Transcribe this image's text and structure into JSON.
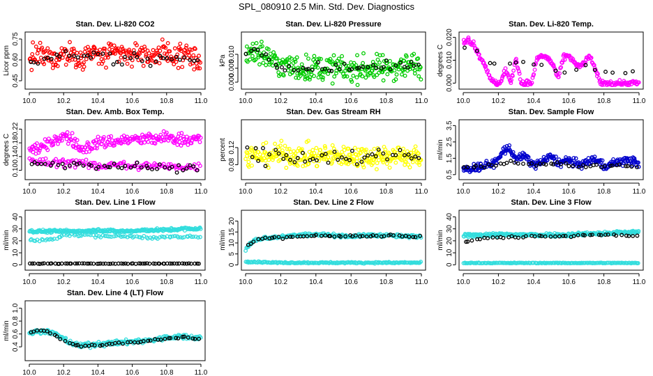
{
  "main_title": "SPL_080910  2.5 Min. Std. Dev. Diagnostics",
  "chart_data": [
    {
      "type": "scatter",
      "title": "Stan. Dev. Li-820 CO2",
      "ylabel": "Licor ppm",
      "xlim": [
        10.0,
        11.0
      ],
      "ylim": [
        0.42,
        0.77
      ],
      "xticks": [
        "10.0",
        "10.2",
        "10.4",
        "10.6",
        "10.8",
        "11.0"
      ],
      "yticks": [
        "0.45",
        "0.60",
        "0.75"
      ],
      "color": "#ff0000",
      "series": [
        {
          "x": [
            10.0,
            10.05,
            10.1,
            10.15,
            10.2,
            10.25,
            10.3,
            10.35,
            10.4,
            10.45,
            10.5,
            10.55,
            10.6,
            10.65,
            10.7,
            10.75,
            10.8,
            10.85,
            10.9,
            10.95,
            11.0
          ],
          "y": [
            0.6,
            0.64,
            0.62,
            0.6,
            0.65,
            0.63,
            0.61,
            0.65,
            0.63,
            0.62,
            0.65,
            0.64,
            0.63,
            0.66,
            0.62,
            0.65,
            0.64,
            0.63,
            0.65,
            0.62,
            0.58
          ],
          "spread": 0.08,
          "n": 260,
          "hue": "color"
        },
        {
          "x": [
            10.0,
            10.1,
            10.2,
            10.3,
            10.4,
            10.5,
            10.6,
            10.7,
            10.8,
            10.9,
            11.0
          ],
          "y": [
            0.57,
            0.6,
            0.62,
            0.6,
            0.63,
            0.6,
            0.62,
            0.6,
            0.61,
            0.6,
            0.57
          ],
          "spread": 0.05,
          "n": 40,
          "hue": "black"
        }
      ]
    },
    {
      "type": "scatter",
      "title": "Stan. Dev. Li-820 Pressure",
      "ylabel": "kPa",
      "xlim": [
        10.0,
        11.0
      ],
      "ylim": [
        -0.001,
        0.0165
      ],
      "xticks": [
        "10.0",
        "10.2",
        "10.4",
        "10.6",
        "10.8",
        "11.0"
      ],
      "yticks": [
        "0.000",
        "0.005",
        "0.010"
      ],
      "color": "#00cc00",
      "series": [
        {
          "x": [
            10.0,
            10.05,
            10.1,
            10.15,
            10.2,
            10.3,
            10.4,
            10.5,
            10.6,
            10.7,
            10.8,
            10.9,
            11.0
          ],
          "y": [
            0.011,
            0.0115,
            0.01,
            0.008,
            0.006,
            0.005,
            0.005,
            0.005,
            0.0045,
            0.005,
            0.005,
            0.006,
            0.006
          ],
          "spread": 0.0045,
          "n": 300,
          "hue": "color"
        },
        {
          "x": [
            10.0,
            10.05,
            10.1,
            10.15,
            10.2,
            10.3,
            10.4,
            10.5,
            10.6,
            10.7,
            10.8,
            10.9,
            11.0
          ],
          "y": [
            0.0105,
            0.011,
            0.0105,
            0.008,
            0.006,
            0.005,
            0.0055,
            0.005,
            0.005,
            0.0055,
            0.0055,
            0.006,
            0.006
          ],
          "spread": 0.0015,
          "n": 45,
          "hue": "black"
        }
      ]
    },
    {
      "type": "scatter",
      "title": "Stan. Dev. Li-820 Temp.",
      "ylabel": "degrees C",
      "xlim": [
        10.0,
        11.0
      ],
      "ylim": [
        -0.0008,
        0.0205
      ],
      "xticks": [
        "10.0",
        "10.2",
        "10.4",
        "10.6",
        "10.8",
        "11.0"
      ],
      "yticks": [
        "0.000",
        "0.010",
        "0.020"
      ],
      "color": "#ff00ff",
      "series": [
        {
          "x": [
            10.0,
            10.03,
            10.06,
            10.09,
            10.12,
            10.15,
            10.18,
            10.21,
            10.24,
            10.27,
            10.3,
            10.33,
            10.36,
            10.39,
            10.42,
            10.45,
            10.48,
            10.51,
            10.54,
            10.57,
            10.6,
            10.63,
            10.66,
            10.69,
            10.72,
            10.75,
            10.78,
            10.81,
            10.85,
            10.9,
            10.95,
            11.0
          ],
          "y": [
            0.018,
            0.019,
            0.017,
            0.012,
            0.009,
            0.002,
            0.0,
            0.0,
            0.006,
            0.0,
            0.011,
            0.0,
            0.0,
            0.0,
            0.011,
            0.012,
            0.011,
            0.008,
            0.002,
            0.011,
            0.012,
            0.009,
            0.007,
            0.009,
            0.012,
            0.006,
            0.0,
            0.0,
            0.0,
            0.0,
            0.0,
            0.0
          ],
          "spread": 0.0012,
          "n": 260,
          "hue": "color"
        },
        {
          "x": [
            10.05,
            10.1,
            10.15,
            10.45,
            10.5,
            10.55,
            10.65,
            10.7,
            10.75
          ],
          "y": [
            0.015,
            0.013,
            0.009,
            0.008,
            0.006,
            0.004,
            0.007,
            0.008,
            0.005
          ],
          "spread": 0.001,
          "n": 18,
          "hue": "black"
        }
      ]
    },
    {
      "type": "scatter",
      "title": "Stan. Dev. Amb. Box Temp.",
      "ylabel": "degrees C",
      "xlim": [
        10.0,
        11.0
      ],
      "ylim": [
        0.085,
        0.235
      ],
      "xticks": [
        "10.0",
        "10.2",
        "10.4",
        "10.6",
        "10.8",
        "11.0"
      ],
      "yticks": [
        "0.10",
        "0.14",
        "0.18",
        "0.22"
      ],
      "color": "#ff00ff",
      "series": [
        {
          "x": [
            10.0,
            10.1,
            10.15,
            10.2,
            10.25,
            10.3,
            10.35,
            10.4,
            10.5,
            10.6,
            10.7,
            10.8,
            10.9,
            11.0
          ],
          "y": [
            0.16,
            0.17,
            0.19,
            0.2,
            0.19,
            0.16,
            0.17,
            0.18,
            0.185,
            0.19,
            0.19,
            0.195,
            0.19,
            0.19
          ],
          "spread": 0.018,
          "n": 230,
          "hue": "color"
        },
        {
          "x": [
            10.0,
            10.1,
            10.2,
            10.3,
            10.4,
            10.5,
            10.6,
            10.7,
            10.8,
            10.9,
            11.0
          ],
          "y": [
            0.13,
            0.12,
            0.125,
            0.12,
            0.11,
            0.12,
            0.11,
            0.115,
            0.11,
            0.11,
            0.11
          ],
          "spread": 0.012,
          "n": 140,
          "hue": "color"
        },
        {
          "x": [
            10.0,
            10.1,
            10.2,
            10.3,
            10.4,
            10.5,
            10.6,
            10.7,
            10.8,
            10.9,
            11.0
          ],
          "y": [
            0.125,
            0.12,
            0.12,
            0.12,
            0.11,
            0.115,
            0.11,
            0.11,
            0.105,
            0.11,
            0.11
          ],
          "spread": 0.012,
          "n": 45,
          "hue": "black"
        }
      ]
    },
    {
      "type": "scatter",
      "title": "Stan. Dev. Gas Stream RH",
      "ylabel": "percent",
      "xlim": [
        10.0,
        11.0
      ],
      "ylim": [
        0.055,
        0.175
      ],
      "xticks": [
        "10.0",
        "10.2",
        "10.4",
        "10.6",
        "10.8",
        "11.0"
      ],
      "yticks": [
        "0.08",
        "0.12"
      ],
      "color": "#ffff00",
      "series": [
        {
          "x": [
            10.0,
            10.1,
            10.2,
            10.3,
            10.4,
            10.5,
            10.6,
            10.7,
            10.8,
            10.9,
            11.0
          ],
          "y": [
            0.1,
            0.1,
            0.105,
            0.1,
            0.1,
            0.1,
            0.1,
            0.1,
            0.1,
            0.1,
            0.095
          ],
          "spread": 0.025,
          "n": 320,
          "hue": "color"
        },
        {
          "x": [
            10.0,
            10.1,
            10.2,
            10.3,
            10.4,
            10.5,
            10.6,
            10.7,
            10.8,
            10.9,
            11.0
          ],
          "y": [
            0.1,
            0.1,
            0.105,
            0.1,
            0.1,
            0.1,
            0.1,
            0.1,
            0.1,
            0.1,
            0.095
          ],
          "spread": 0.02,
          "n": 45,
          "hue": "black"
        }
      ]
    },
    {
      "type": "scatter",
      "title": "Stan. Dev. Sample Flow",
      "ylabel": "ml/min",
      "xlim": [
        10.0,
        11.0
      ],
      "ylim": [
        0.45,
        3.6
      ],
      "xticks": [
        "10.0",
        "10.2",
        "10.4",
        "10.6",
        "10.8",
        "11.0"
      ],
      "yticks": [
        "0.5",
        "1.5",
        "2.5",
        "3.5"
      ],
      "color": "#0000cc",
      "series": [
        {
          "x": [
            10.0,
            10.05,
            10.1,
            10.15,
            10.2,
            10.23,
            10.26,
            10.3,
            10.35,
            10.4,
            10.45,
            10.5,
            10.55,
            10.6,
            10.65,
            10.7,
            10.75,
            10.8,
            10.85,
            10.9,
            10.95,
            11.0
          ],
          "y": [
            0.8,
            0.9,
            1.0,
            1.1,
            1.4,
            2.0,
            2.1,
            1.5,
            1.6,
            1.1,
            1.3,
            1.6,
            1.2,
            1.4,
            1.1,
            1.2,
            1.5,
            1.0,
            1.2,
            1.3,
            1.4,
            1.1
          ],
          "spread": 0.25,
          "n": 300,
          "hue": "color"
        },
        {
          "x": [
            10.0,
            10.1,
            10.2,
            10.3,
            10.4,
            10.5,
            10.6,
            10.7,
            10.8,
            10.9,
            11.0
          ],
          "y": [
            0.9,
            1.0,
            1.1,
            1.3,
            1.1,
            1.2,
            1.1,
            1.0,
            1.0,
            1.1,
            1.0
          ],
          "spread": 0.12,
          "n": 45,
          "hue": "black"
        }
      ]
    },
    {
      "type": "scatter",
      "title": "Stan. Dev. Line 1 Flow",
      "ylabel": "ml/min",
      "xlim": [
        10.0,
        11.0
      ],
      "ylim": [
        -1,
        42
      ],
      "xticks": [
        "10.0",
        "10.2",
        "10.4",
        "10.6",
        "10.8",
        "11.0"
      ],
      "yticks": [
        "0",
        "10",
        "20",
        "30",
        "40"
      ],
      "color": "#33dddd",
      "series": [
        {
          "x": [
            10.0,
            10.1,
            10.2,
            10.3,
            10.4,
            10.5,
            10.6,
            10.7,
            10.8,
            10.9,
            11.0
          ],
          "y": [
            28,
            28,
            28,
            28,
            29,
            28,
            28,
            29,
            29,
            30,
            30
          ],
          "spread": 1.2,
          "n": 260,
          "hue": "color"
        },
        {
          "x": [
            10.0,
            10.05,
            10.1,
            10.15,
            10.2,
            10.7,
            10.8,
            10.9,
            11.0
          ],
          "y": [
            21,
            20,
            21,
            22,
            25,
            23,
            23,
            23,
            23
          ],
          "spread": 1.2,
          "n": 90,
          "hue": "color"
        },
        {
          "x": [
            10.0,
            10.2,
            10.4,
            10.6,
            10.8,
            11.0
          ],
          "y": [
            1,
            1,
            1,
            1,
            1,
            1
          ],
          "spread": 0.2,
          "n": 70,
          "hue": "black"
        }
      ]
    },
    {
      "type": "scatter",
      "title": "Stan. Dev. Line 2 Flow",
      "ylabel": "ml/min",
      "xlim": [
        10.0,
        11.0
      ],
      "ylim": [
        -0.5,
        23
      ],
      "xticks": [
        "10.0",
        "10.2",
        "10.4",
        "10.6",
        "10.8",
        "11.0"
      ],
      "yticks": [
        "0",
        "5",
        "10",
        "15",
        "20"
      ],
      "color": "#33dddd",
      "series": [
        {
          "x": [
            10.0,
            10.03,
            10.06,
            10.1,
            10.2,
            10.3,
            10.4,
            10.5,
            10.6,
            10.7,
            10.8,
            10.9,
            11.0
          ],
          "y": [
            7,
            10,
            11.5,
            12,
            13,
            13.5,
            14,
            13.5,
            13,
            13.5,
            13.5,
            13,
            13
          ],
          "spread": 0.7,
          "n": 230,
          "hue": "color"
        },
        {
          "x": [
            10.0,
            10.2,
            10.4,
            10.6,
            10.8,
            11.0
          ],
          "y": [
            1.5,
            1,
            1,
            1,
            1,
            1
          ],
          "spread": 0.3,
          "n": 180,
          "hue": "color"
        },
        {
          "x": [
            10.0,
            10.05,
            10.1,
            10.2,
            10.3,
            10.4,
            10.5,
            10.6,
            10.7,
            10.8,
            10.9,
            11.0
          ],
          "y": [
            8,
            11,
            12,
            12.5,
            13,
            13.5,
            13,
            13,
            13,
            13.5,
            13,
            13
          ],
          "spread": 0.5,
          "n": 50,
          "hue": "black"
        }
      ]
    },
    {
      "type": "scatter",
      "title": "Stan. Dev. Line 3 Flow",
      "ylabel": "ml/min",
      "xlim": [
        10.0,
        11.0
      ],
      "ylim": [
        -1,
        42
      ],
      "xticks": [
        "10.0",
        "10.2",
        "10.4",
        "10.6",
        "10.8",
        "11.0"
      ],
      "yticks": [
        "0",
        "10",
        "20",
        "30",
        "40"
      ],
      "color": "#33dddd",
      "series": [
        {
          "x": [
            10.0,
            10.1,
            10.2,
            10.3,
            10.4,
            10.5,
            10.6,
            10.7,
            10.8,
            10.9,
            11.0
          ],
          "y": [
            24,
            25,
            25,
            25,
            25,
            25,
            25,
            26,
            26,
            27,
            27
          ],
          "spread": 1.5,
          "n": 280,
          "hue": "color"
        },
        {
          "x": [
            10.0,
            10.2,
            10.4,
            10.6,
            10.8,
            11.0
          ],
          "y": [
            1.5,
            1.5,
            1.5,
            1.5,
            1.5,
            1.5
          ],
          "spread": 0.3,
          "n": 160,
          "hue": "color"
        },
        {
          "x": [
            10.0,
            10.05,
            10.1,
            10.2,
            10.3,
            10.4,
            10.5,
            10.6,
            10.7,
            10.8,
            10.9,
            11.0
          ],
          "y": [
            18,
            21,
            22,
            23,
            23,
            24,
            24,
            24,
            25,
            25,
            25,
            24
          ],
          "spread": 0.8,
          "n": 45,
          "hue": "black"
        }
      ]
    },
    {
      "type": "scatter",
      "title": "Stan. Dev. Line 4 (LT) Flow",
      "ylabel": "ml/min",
      "xlim": [
        10.0,
        11.0
      ],
      "ylim": [
        0.25,
        1.05
      ],
      "xticks": [
        "10.0",
        "10.2",
        "10.4",
        "10.6",
        "10.8",
        "11.0"
      ],
      "yticks": [
        "0.4",
        "0.6",
        "0.8",
        "1.0"
      ],
      "color": "#33dddd",
      "series": [
        {
          "x": [
            10.0,
            10.05,
            10.1,
            10.15,
            10.2,
            10.25,
            10.3,
            10.4,
            10.5,
            10.6,
            10.7,
            10.8,
            10.9,
            11.0
          ],
          "y": [
            0.6,
            0.65,
            0.64,
            0.6,
            0.52,
            0.45,
            0.42,
            0.44,
            0.46,
            0.48,
            0.5,
            0.54,
            0.56,
            0.54
          ],
          "spread": 0.035,
          "n": 260,
          "hue": "color"
        },
        {
          "x": [
            10.0,
            10.05,
            10.1,
            10.15,
            10.2,
            10.25,
            10.3,
            10.4,
            10.5,
            10.6,
            10.7,
            10.8,
            10.9,
            11.0
          ],
          "y": [
            0.62,
            0.65,
            0.64,
            0.58,
            0.5,
            0.44,
            0.41,
            0.43,
            0.45,
            0.47,
            0.49,
            0.53,
            0.55,
            0.52
          ],
          "spread": 0.015,
          "n": 50,
          "hue": "black"
        }
      ]
    }
  ]
}
